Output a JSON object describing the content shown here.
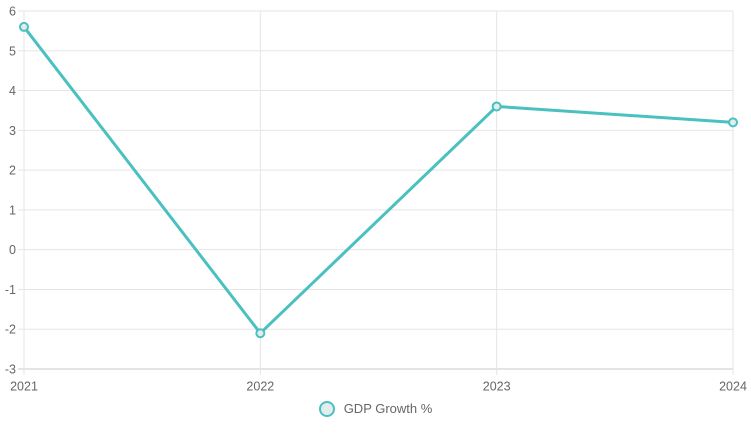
{
  "chart_data": {
    "type": "line",
    "title": "",
    "xlabel": "",
    "ylabel": "",
    "categories": [
      "2021",
      "2022",
      "2023",
      "2024"
    ],
    "series": [
      {
        "name": "GDP Growth %",
        "values": [
          5.6,
          -2.1,
          3.6,
          3.2
        ]
      }
    ],
    "ylim": [
      -3,
      6
    ],
    "ytick_step": 1,
    "yticks": [
      "6",
      "5",
      "4",
      "3",
      "2",
      "1",
      "0",
      "-1",
      "-2",
      "-3"
    ],
    "grid": true,
    "legend_position": "bottom-center",
    "legend_point_style": "circle",
    "colors": {
      "line": "#4BC0C0",
      "point_fill": "#E4EDED",
      "grid": "#E5E5E5",
      "axis_line": "#C9C9C9",
      "tick_text": "#666666",
      "background": "#FFFFFF"
    }
  },
  "legend": {
    "items": [
      {
        "label": "GDP Growth %"
      }
    ]
  }
}
